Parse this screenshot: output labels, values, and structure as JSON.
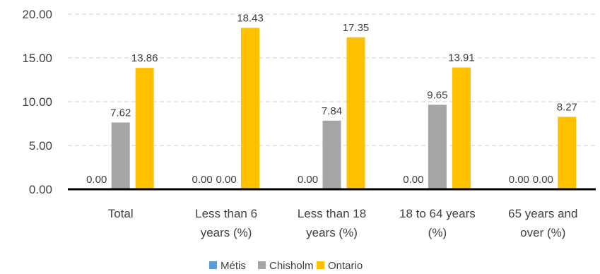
{
  "chart_data": {
    "type": "bar",
    "title": "",
    "xlabel": "",
    "ylabel": "",
    "ylim": [
      0,
      20
    ],
    "yticks": [
      "0.00",
      "5.00",
      "10.00",
      "15.00",
      "20.00"
    ],
    "grid": "horizontal-dashed",
    "legend_position": "bottom",
    "categories": [
      [
        "Total"
      ],
      [
        "Less than 6",
        "years (%)"
      ],
      [
        "Less than 18",
        "years (%)"
      ],
      [
        "18 to 64 years",
        "(%)"
      ],
      [
        "65 years and",
        "over (%)"
      ]
    ],
    "series": [
      {
        "name": "Métis",
        "color": "#5B9BD5",
        "values": [
          0.0,
          0.0,
          0.0,
          0.0,
          0.0
        ],
        "labels": [
          "0.00",
          "0.00",
          "0.00",
          "0.00",
          "0.00"
        ]
      },
      {
        "name": "Chisholm",
        "color": "#A5A5A5",
        "values": [
          7.62,
          0.0,
          7.84,
          9.65,
          0.0
        ],
        "labels": [
          "7.62",
          "0.00",
          "7.84",
          "9.65",
          "0.00"
        ]
      },
      {
        "name": "Ontario",
        "color": "#FFC000",
        "values": [
          13.86,
          18.43,
          17.35,
          13.91,
          8.27
        ],
        "labels": [
          "13.86",
          "18.43",
          "17.35",
          "13.91",
          "8.27"
        ]
      }
    ]
  }
}
